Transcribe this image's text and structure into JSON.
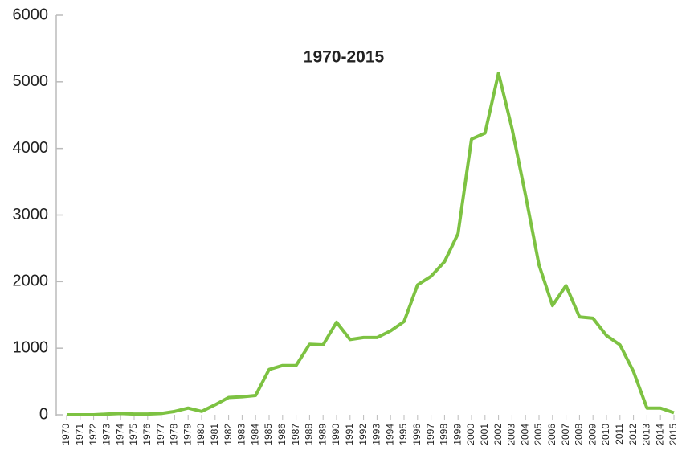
{
  "chart_data": {
    "type": "line",
    "title": "1970-2015",
    "categories": [
      "1970",
      "1971",
      "1972",
      "1973",
      "1974",
      "1975",
      "1976",
      "1977",
      "1978",
      "1979",
      "1980",
      "1981",
      "1982",
      "1983",
      "1984",
      "1985",
      "1986",
      "1987",
      "1988",
      "1989",
      "1990",
      "1991",
      "1992",
      "1993",
      "1994",
      "1995",
      "1996",
      "1997",
      "1998",
      "1999",
      "2000",
      "2001",
      "2002",
      "2003",
      "2004",
      "2005",
      "2006",
      "2007",
      "2008",
      "2009",
      "2010",
      "2011",
      "2012",
      "2013",
      "2014",
      "2015"
    ],
    "values": [
      0,
      0,
      0,
      10,
      20,
      10,
      10,
      20,
      50,
      100,
      50,
      150,
      260,
      270,
      290,
      680,
      740,
      740,
      1060,
      1050,
      1390,
      1130,
      1160,
      1160,
      1260,
      1400,
      1950,
      2080,
      2300,
      2720,
      4140,
      4230,
      5130,
      4300,
      3300,
      2250,
      1640,
      1940,
      1470,
      1450,
      1190,
      1050,
      650,
      100,
      100,
      30
    ],
    "color": "#7dc242",
    "ylim": [
      0,
      6000
    ],
    "yticks": [
      0,
      1000,
      2000,
      3000,
      4000,
      5000,
      6000
    ]
  }
}
